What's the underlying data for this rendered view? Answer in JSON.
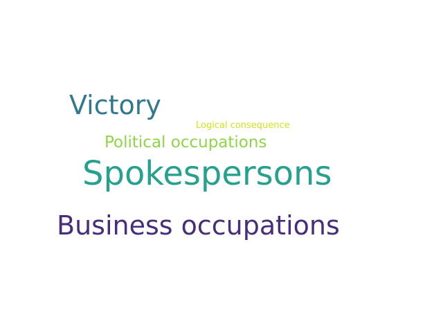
{
  "words": [
    {
      "text": "Victory",
      "color": "#31788e"
    },
    {
      "text": "Logical consequence",
      "color": "#d2e21b"
    },
    {
      "text": "Political occupations",
      "color": "#8ed645"
    },
    {
      "text": "Spokespersons",
      "color": "#25a18e"
    },
    {
      "text": "Business occupations",
      "color": "#472d7b"
    }
  ],
  "background_color": "#ffffff"
}
